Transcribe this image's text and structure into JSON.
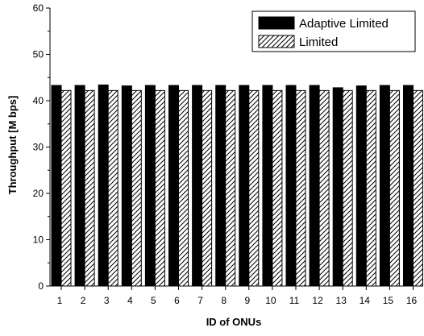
{
  "chart_data": {
    "type": "bar",
    "xlabel": "ID of ONUs",
    "ylabel": "Throughput [M bps]",
    "ylim": [
      0,
      60
    ],
    "yticks": [
      0,
      10,
      20,
      30,
      40,
      50,
      60
    ],
    "categories": [
      "1",
      "2",
      "3",
      "4",
      "5",
      "6",
      "7",
      "8",
      "9",
      "10",
      "11",
      "12",
      "13",
      "14",
      "15",
      "16"
    ],
    "series": [
      {
        "name": "Adaptive Limited",
        "fill": "solid",
        "color": "#000000",
        "values": [
          43.3,
          43.3,
          43.4,
          43.2,
          43.3,
          43.3,
          43.3,
          43.3,
          43.3,
          43.3,
          43.3,
          43.3,
          42.8,
          43.2,
          43.3,
          43.3
        ]
      },
      {
        "name": "Limited",
        "fill": "hatched",
        "color": "#ffffff",
        "values": [
          42.2,
          42.2,
          42.2,
          42.2,
          42.2,
          42.2,
          42.2,
          42.2,
          42.2,
          42.2,
          42.2,
          42.2,
          42.2,
          42.2,
          42.2,
          42.2
        ]
      }
    ],
    "legend_position": "top-right",
    "grid": false
  }
}
